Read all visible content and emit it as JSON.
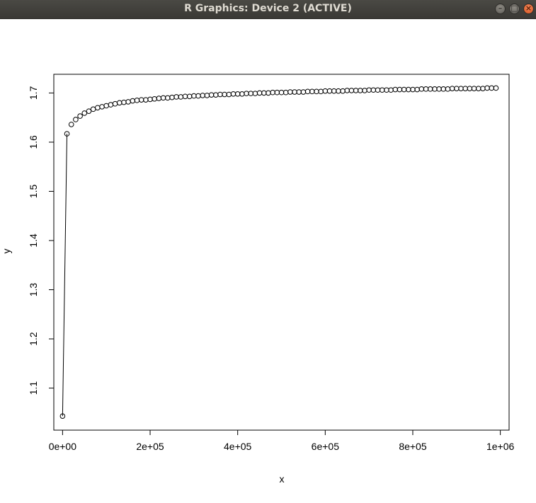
{
  "window": {
    "title": "R Graphics: Device 2 (ACTIVE)",
    "buttons": [
      {
        "name": "minimize",
        "glyph": "–"
      },
      {
        "name": "maximize",
        "glyph": "□"
      },
      {
        "name": "close",
        "glyph": "×"
      }
    ]
  },
  "chart_data": {
    "type": "scatter",
    "title": "",
    "xlabel": "x",
    "ylabel": "y",
    "xlim": [
      -20000,
      1020000
    ],
    "ylim": [
      1.0145,
      1.738
    ],
    "x_ticks": [
      0,
      200000,
      400000,
      600000,
      800000,
      1000000
    ],
    "x_tick_labels": [
      "0e+00",
      "2e+05",
      "4e+05",
      "6e+05",
      "8e+05",
      "1e+06"
    ],
    "y_ticks": [
      1.1,
      1.2,
      1.3,
      1.4,
      1.5,
      1.6,
      1.7
    ],
    "y_tick_labels": [
      "1.1",
      "1.2",
      "1.3",
      "1.4",
      "1.5",
      "1.6",
      "1.7"
    ],
    "grid": false,
    "line_segment": {
      "from": [
        0,
        1.043
      ],
      "to": [
        10000,
        1.617
      ]
    },
    "series": [
      {
        "x": [
          0,
          10000,
          20000,
          30000,
          40000,
          50000,
          60000,
          70000,
          80000,
          90000,
          100000,
          110000,
          120000,
          130000,
          140000,
          150000,
          160000,
          170000,
          180000,
          190000,
          200000,
          210000,
          220000,
          230000,
          240000,
          250000,
          260000,
          270000,
          280000,
          290000,
          300000,
          310000,
          320000,
          330000,
          340000,
          350000,
          360000,
          370000,
          380000,
          390000,
          400000,
          410000,
          420000,
          430000,
          440000,
          450000,
          460000,
          470000,
          480000,
          490000,
          500000,
          510000,
          520000,
          530000,
          540000,
          550000,
          560000,
          570000,
          580000,
          590000,
          600000,
          610000,
          620000,
          630000,
          640000,
          650000,
          660000,
          670000,
          680000,
          690000,
          700000,
          710000,
          720000,
          730000,
          740000,
          750000,
          760000,
          770000,
          780000,
          790000,
          800000,
          810000,
          820000,
          830000,
          840000,
          850000,
          860000,
          870000,
          880000,
          890000,
          900000,
          910000,
          920000,
          930000,
          940000,
          950000,
          960000,
          970000,
          980000,
          990000
        ],
        "y": [
          1.043,
          1.617,
          1.636,
          1.646,
          1.653,
          1.659,
          1.663,
          1.667,
          1.67,
          1.672,
          1.674,
          1.676,
          1.678,
          1.68,
          1.681,
          1.682,
          1.684,
          1.685,
          1.686,
          1.686,
          1.687,
          1.688,
          1.689,
          1.69,
          1.69,
          1.691,
          1.692,
          1.692,
          1.693,
          1.693,
          1.694,
          1.694,
          1.695,
          1.695,
          1.696,
          1.696,
          1.697,
          1.697,
          1.697,
          1.698,
          1.698,
          1.698,
          1.699,
          1.699,
          1.699,
          1.7,
          1.7,
          1.7,
          1.701,
          1.701,
          1.701,
          1.701,
          1.702,
          1.702,
          1.702,
          1.702,
          1.703,
          1.703,
          1.703,
          1.703,
          1.704,
          1.704,
          1.704,
          1.704,
          1.704,
          1.705,
          1.705,
          1.705,
          1.705,
          1.705,
          1.706,
          1.706,
          1.706,
          1.706,
          1.706,
          1.706,
          1.707,
          1.707,
          1.707,
          1.707,
          1.707,
          1.707,
          1.708,
          1.708,
          1.708,
          1.708,
          1.708,
          1.708,
          1.708,
          1.709,
          1.709,
          1.709,
          1.709,
          1.709,
          1.709,
          1.709,
          1.709,
          1.71,
          1.71,
          1.71
        ]
      }
    ]
  }
}
